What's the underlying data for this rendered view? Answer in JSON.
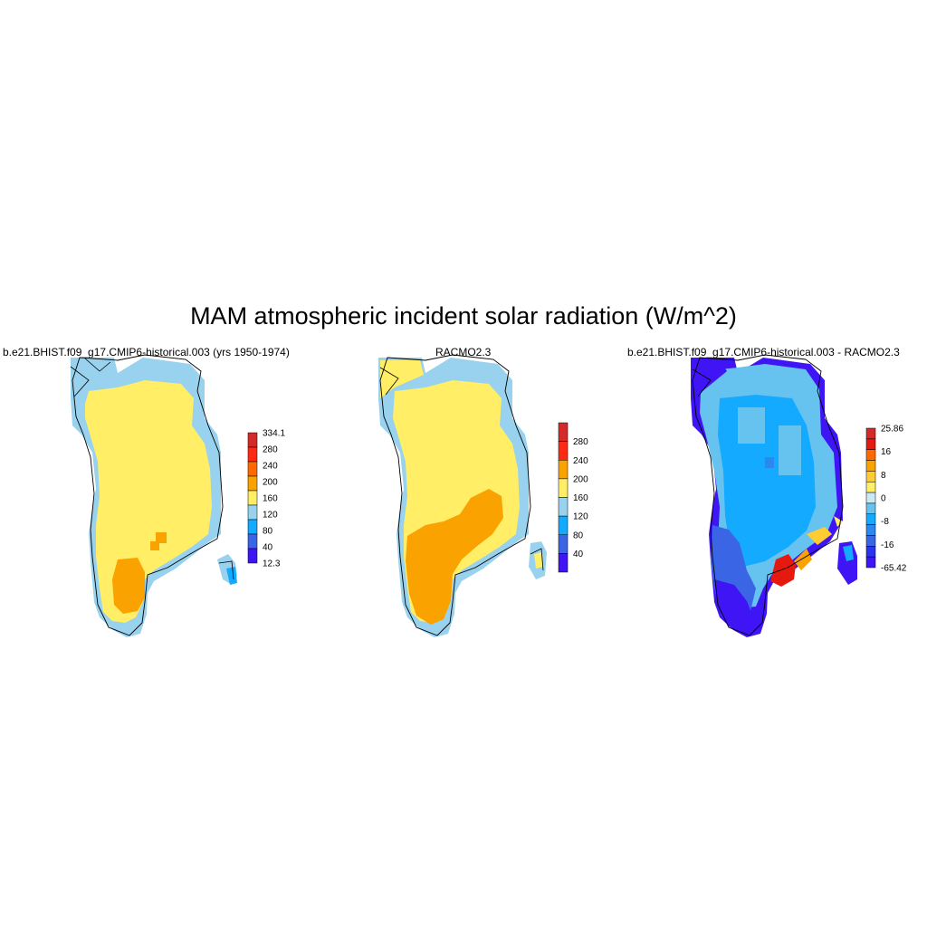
{
  "title": "MAM atmospheric incident solar radiation (W/m^2)",
  "panels": [
    {
      "id": "model",
      "title": "b.e21.BHIST.f09_g17.CMIP6-historical.003 (yrs 1950-1974)",
      "colorbar": {
        "labels": [
          "334.1",
          "280",
          "240",
          "200",
          "160",
          "120",
          "80",
          "40",
          "12.3"
        ],
        "colors": [
          "#d42a2a",
          "#ff2a14",
          "#ff6a00",
          "#f9a200",
          "#ffee66",
          "#99d2ee",
          "#14aaff",
          "#3a66e6",
          "#3f14f5"
        ]
      }
    },
    {
      "id": "obs",
      "title": "RACMO2.3",
      "colorbar": {
        "labels": [
          "280",
          "240",
          "200",
          "160",
          "120",
          "80",
          "40"
        ],
        "colors": [
          "#d42a2a",
          "#ff2a14",
          "#f9a200",
          "#ffee66",
          "#99d2ee",
          "#14aaff",
          "#3a66e6",
          "#3f14f5"
        ]
      }
    },
    {
      "id": "diff",
      "title": "b.e21.BHIST.f09_g17.CMIP6-historical.003 - RACMO2.3",
      "colorbar": {
        "labels": [
          "25.86",
          "16",
          "8",
          "0",
          "-8",
          "-16",
          "-65.42"
        ],
        "colors": [
          "#d42a2a",
          "#e6190f",
          "#ff6a00",
          "#f9a200",
          "#ffcc33",
          "#ffee66",
          "#cce8f0",
          "#66c2ee",
          "#14aaff",
          "#2a88ee",
          "#3a66e6",
          "#2a33f0",
          "#3f14f5"
        ]
      }
    }
  ],
  "colors": {
    "yellow": "#ffee66",
    "orange": "#f9a200",
    "lightblue": "#99d2ee",
    "blue": "#14aaff",
    "medblue": "#3a66e6",
    "violet": "#3f14f5",
    "red": "#e6190f"
  }
}
